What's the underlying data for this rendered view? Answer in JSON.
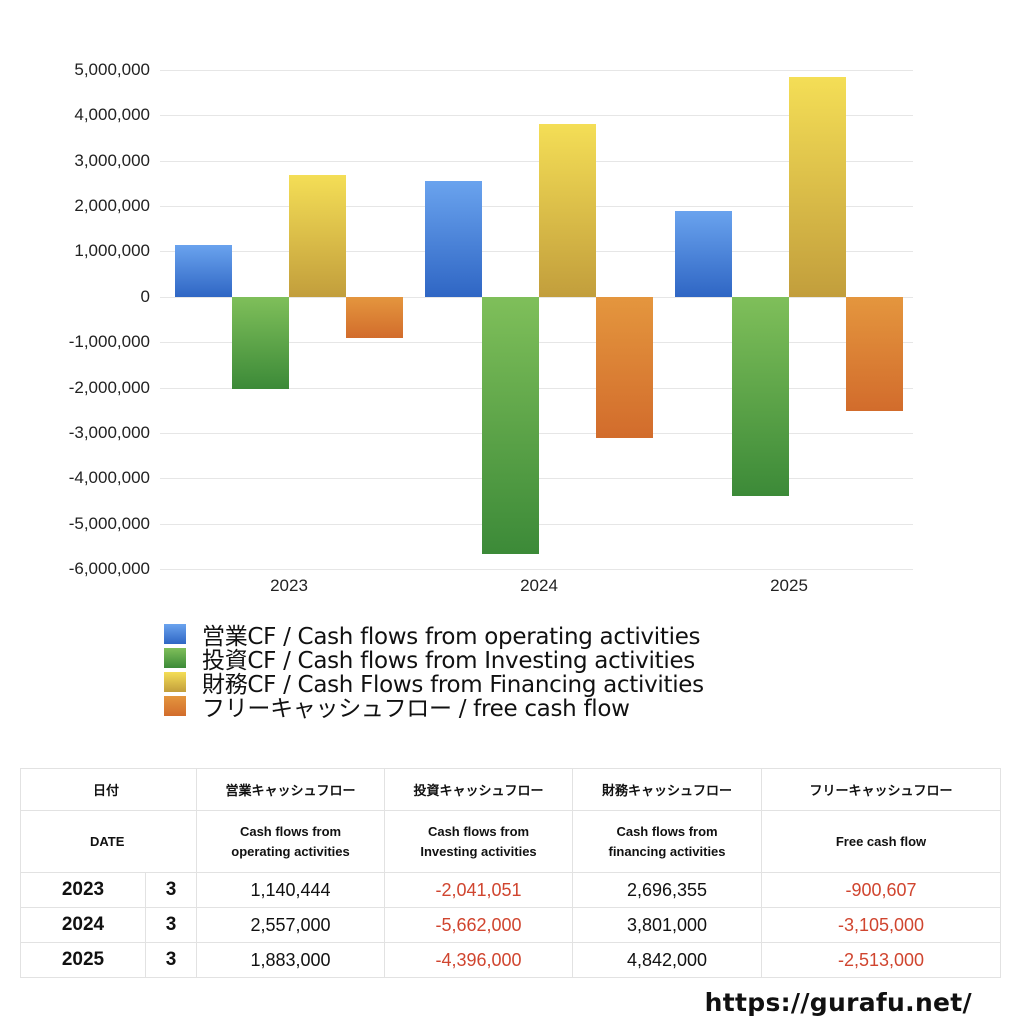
{
  "chart_data": {
    "type": "bar",
    "title": "",
    "xlabel": "",
    "ylabel": "",
    "categories": [
      "2023",
      "2024",
      "2025"
    ],
    "series": [
      {
        "name": "営業CF / Cash flows from operating activities",
        "color": "#3a78d8",
        "values": [
          1140444,
          2557000,
          1883000
        ]
      },
      {
        "name": "投資CF / Cash flows from Investing activities",
        "color": "#4c9a3f",
        "values": [
          -2041051,
          -5662000,
          -4396000
        ]
      },
      {
        "name": "財務CF / Cash Flows from Financing activities",
        "color": "#e0c444",
        "values": [
          2696355,
          3801000,
          4842000
        ]
      },
      {
        "name": "フリーキャッシュフロー / free cash flow",
        "color": "#dd7a32",
        "values": [
          -900607,
          -3105000,
          -2513000
        ]
      }
    ],
    "ylim": [
      -6000000,
      5000000
    ],
    "yticks": [
      "5,000,000",
      "4,000,000",
      "3,000,000",
      "2,000,000",
      "1,000,000",
      "0",
      "-1,000,000",
      "-2,000,000",
      "-3,000,000",
      "-4,000,000",
      "-5,000,000",
      "-6,000,000"
    ],
    "grid": true,
    "legend_position": "bottom"
  },
  "legend": [
    {
      "label": "営業CF / Cash flows from operating activities"
    },
    {
      "label": "投資CF / Cash flows from Investing activities"
    },
    {
      "label": "財務CF / Cash Flows from Financing activities"
    },
    {
      "label": "フリーキャッシュフロー / free cash flow"
    }
  ],
  "table": {
    "headers_jp": {
      "date": "日付",
      "operating": "営業キャッシュフロー",
      "investing": "投資キャッシュフロー",
      "financing": "財務キャッシュフロー",
      "free": "フリーキャッシュフロー"
    },
    "headers_en": {
      "date": "DATE",
      "operating_1": "Cash flows from",
      "operating_2": "operating activities",
      "investing_1": "Cash flows from",
      "investing_2": "Investing activities",
      "financing_1": "Cash flows from",
      "financing_2": "financing activities",
      "free": "Free cash flow"
    },
    "rows": [
      {
        "year": "2023",
        "month": "3",
        "operating": "1,140,444",
        "investing": "-2,041,051",
        "financing": "2,696,355",
        "free": "-900,607"
      },
      {
        "year": "2024",
        "month": "3",
        "operating": "2,557,000",
        "investing": "-5,662,000",
        "financing": "3,801,000",
        "free": "-3,105,000"
      },
      {
        "year": "2025",
        "month": "3",
        "operating": "1,883,000",
        "investing": "-4,396,000",
        "financing": "4,842,000",
        "free": "-2,513,000"
      }
    ]
  },
  "footer": {
    "url": "https://gurafu.net/"
  }
}
